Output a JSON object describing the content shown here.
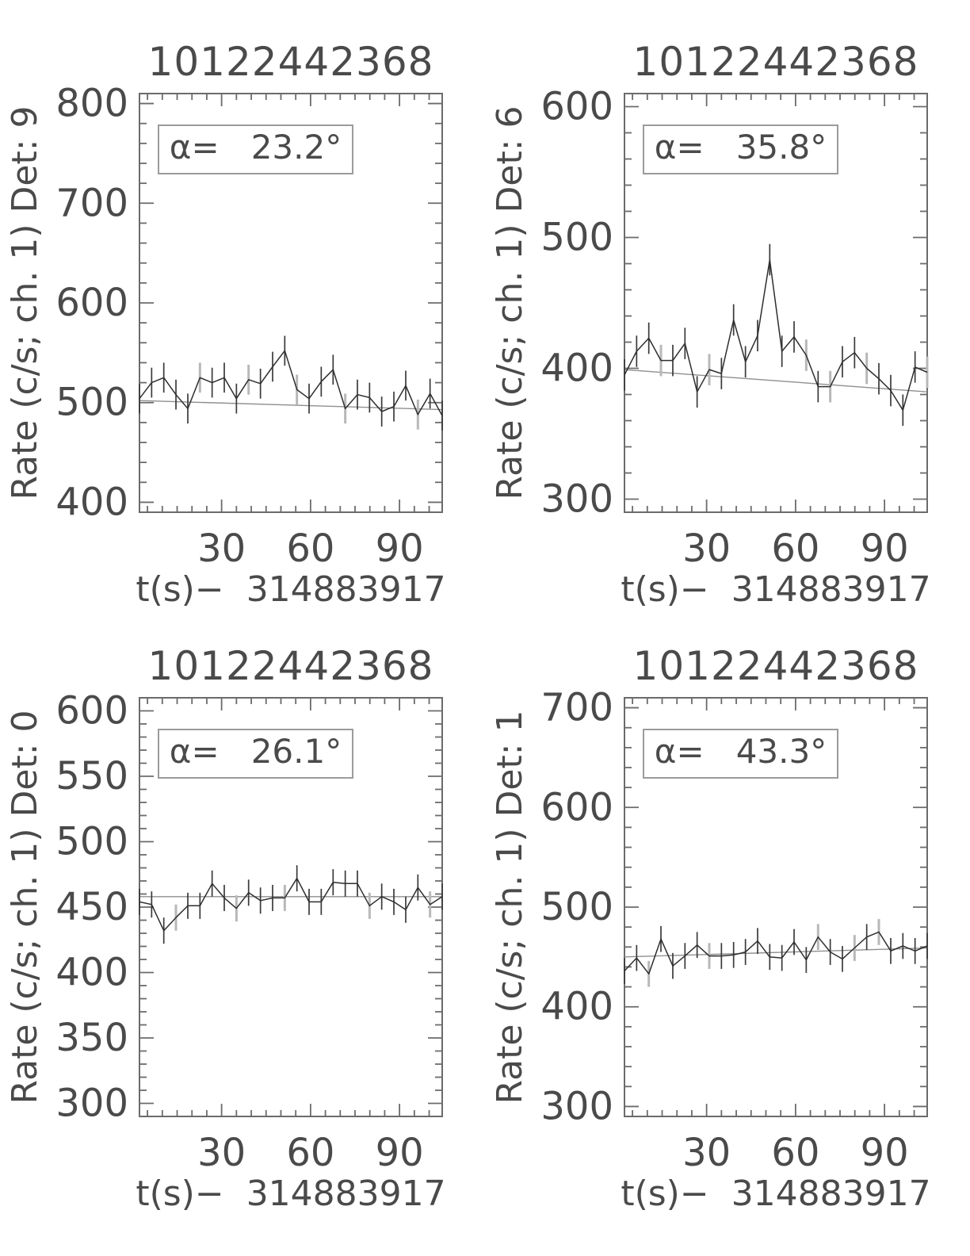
{
  "page": {
    "background": "#ffffff",
    "description": "2x2 grid of detector count-rate light curves"
  },
  "colors": {
    "text": "#4a4a4a",
    "frame": "#6b6b6b",
    "data_line": "#2e2e2e",
    "error_dark": "#3a3a3a",
    "error_grey": "#b8b8b8",
    "trend_line": "#8f8f8f",
    "annotation_border": "#9b9b9b"
  },
  "chart_data": [
    {
      "type": "line",
      "title": "10122442368",
      "ylabel": "Rate (c/s; ch. 1) Det: 9",
      "xlabel": "t(s)−  314883917",
      "annotation": "α=   23.2°",
      "detector": 9,
      "alpha_deg": 23.2,
      "row": "top",
      "xlim": [
        2.3,
        104.4
      ],
      "ylim": [
        390,
        810
      ],
      "xticks": [
        30,
        60,
        90
      ],
      "yticks": [
        400,
        500,
        600,
        700,
        800
      ],
      "x_minor_step": 5,
      "y_minor_step": 20,
      "x": [
        2.3,
        6.4,
        10.5,
        14.6,
        18.6,
        22.7,
        26.8,
        30.9,
        35.0,
        39.1,
        43.1,
        47.2,
        51.3,
        55.4,
        59.5,
        63.6,
        67.6,
        71.7,
        75.8,
        79.9,
        84.0,
        88.1,
        92.1,
        96.2,
        100.3,
        104.4
      ],
      "rate": [
        504,
        520,
        525,
        508,
        494,
        525,
        520,
        525,
        504,
        523,
        519,
        536,
        552,
        513,
        504,
        521,
        533,
        494,
        508,
        505,
        491,
        496,
        517,
        488,
        509,
        487
      ],
      "yerr": 15,
      "grey_error_indices": [
        5,
        9,
        13,
        17,
        23
      ],
      "trend": {
        "start": 502,
        "end": 493
      }
    },
    {
      "type": "line",
      "title": "10122442368",
      "ylabel": "Rate (c/s; ch. 1) Det: 6",
      "xlabel": "t(s)−  314883917",
      "annotation": "α=   35.8°",
      "detector": 6,
      "alpha_deg": 35.8,
      "row": "top",
      "xlim": [
        2.3,
        104.4
      ],
      "ylim": [
        290,
        610
      ],
      "xticks": [
        30,
        60,
        90
      ],
      "yticks": [
        300,
        400,
        500,
        600
      ],
      "x_minor_step": 5,
      "y_minor_step": 20,
      "x": [
        2.3,
        6.4,
        10.5,
        14.6,
        18.6,
        22.7,
        26.8,
        30.9,
        35.0,
        39.1,
        43.1,
        47.2,
        51.3,
        55.4,
        59.5,
        63.6,
        67.6,
        71.7,
        75.8,
        79.9,
        84.0,
        88.1,
        92.1,
        96.2,
        100.3,
        104.4
      ],
      "rate": [
        395,
        413,
        423,
        406,
        406,
        419,
        382,
        399,
        396,
        437,
        405,
        425,
        483,
        413,
        424,
        410,
        386,
        386,
        405,
        412,
        400,
        392,
        383,
        368,
        401,
        397
      ],
      "yerr": 12,
      "grey_error_indices": [
        3,
        7,
        15,
        17,
        20,
        25
      ],
      "trend": {
        "start": 399,
        "end": 382
      }
    },
    {
      "type": "line",
      "title": "10122442368",
      "ylabel": "Rate (c/s; ch. 1) Det: 0",
      "xlabel": "t(s)−  314883917",
      "annotation": "α=   26.1°",
      "detector": 0,
      "alpha_deg": 26.1,
      "row": "bottom",
      "xlim": [
        2.3,
        104.4
      ],
      "ylim": [
        290,
        610
      ],
      "xticks": [
        30,
        60,
        90
      ],
      "yticks": [
        300,
        350,
        400,
        450,
        500,
        550,
        600
      ],
      "x_minor_step": 5,
      "y_minor_step": 10,
      "x": [
        2.3,
        6.4,
        10.5,
        14.6,
        18.6,
        22.7,
        26.8,
        30.9,
        35.0,
        39.1,
        43.1,
        47.2,
        51.3,
        55.4,
        59.5,
        63.6,
        67.6,
        71.7,
        75.8,
        79.9,
        84.0,
        88.1,
        92.1,
        96.2,
        100.3,
        104.4
      ],
      "rate": [
        454,
        452,
        432,
        442,
        451,
        451,
        468,
        457,
        449,
        461,
        455,
        457,
        457,
        472,
        454,
        454,
        469,
        468,
        468,
        451,
        458,
        454,
        448,
        465,
        452,
        458
      ],
      "yerr": 10,
      "grey_error_indices": [
        3,
        8,
        12,
        19,
        24
      ],
      "trend": {
        "start": 458,
        "end": 458
      }
    },
    {
      "type": "line",
      "title": "10122442368",
      "ylabel": "Rate (c/s; ch. 1) Det: 1",
      "xlabel": "t(s)−  314883917",
      "annotation": "α=   43.3°",
      "detector": 1,
      "alpha_deg": 43.3,
      "row": "bottom",
      "xlim": [
        2.3,
        104.4
      ],
      "ylim": [
        290,
        710
      ],
      "xticks": [
        30,
        60,
        90
      ],
      "yticks": [
        300,
        400,
        500,
        600,
        700
      ],
      "x_minor_step": 5,
      "y_minor_step": 20,
      "x": [
        2.3,
        6.4,
        10.5,
        14.6,
        18.6,
        22.7,
        26.8,
        30.9,
        35.0,
        39.1,
        43.1,
        47.2,
        51.3,
        55.4,
        59.5,
        63.6,
        67.6,
        71.7,
        75.8,
        79.9,
        84.0,
        88.1,
        92.1,
        96.2,
        100.3,
        104.4
      ],
      "rate": [
        436,
        449,
        433,
        468,
        441,
        451,
        462,
        451,
        451,
        452,
        455,
        466,
        450,
        449,
        465,
        447,
        470,
        455,
        448,
        459,
        470,
        475,
        456,
        461,
        456,
        461
      ],
      "yerr": 13,
      "grey_error_indices": [
        2,
        7,
        16,
        19,
        21
      ],
      "trend": {
        "start": 450,
        "end": 459
      }
    }
  ]
}
